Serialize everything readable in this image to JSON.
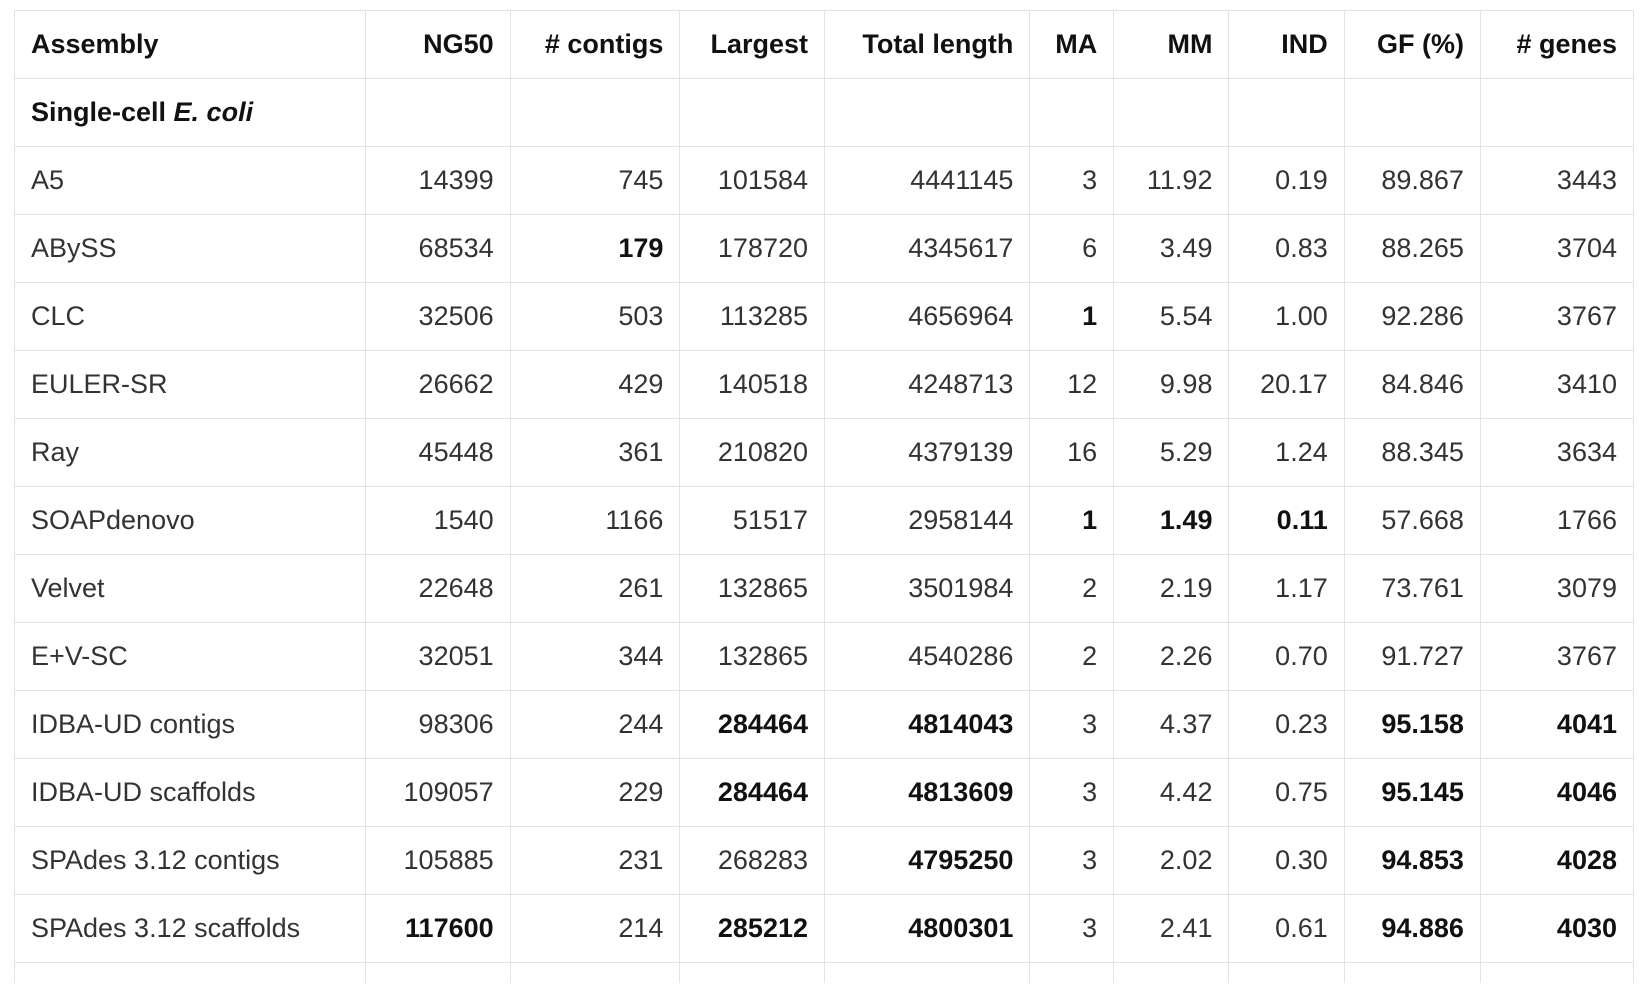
{
  "table": {
    "columns": [
      "Assembly",
      "NG50",
      "# contigs",
      "Largest",
      "Total length",
      "MA",
      "MM",
      "IND",
      "GF (%)",
      "# genes"
    ],
    "section": {
      "prefix": "Single-cell ",
      "organism": "E. coli"
    },
    "rows": [
      {
        "cells": [
          "A5",
          "14399",
          "745",
          "101584",
          "4441145",
          "3",
          "11.92",
          "0.19",
          "89.867",
          "3443"
        ],
        "bold": []
      },
      {
        "cells": [
          "ABySS",
          "68534",
          "179",
          "178720",
          "4345617",
          "6",
          "3.49",
          "0.83",
          "88.265",
          "3704"
        ],
        "bold": [
          2
        ]
      },
      {
        "cells": [
          "CLC",
          "32506",
          "503",
          "113285",
          "4656964",
          "1",
          "5.54",
          "1.00",
          "92.286",
          "3767"
        ],
        "bold": [
          5
        ]
      },
      {
        "cells": [
          "EULER-SR",
          "26662",
          "429",
          "140518",
          "4248713",
          "12",
          "9.98",
          "20.17",
          "84.846",
          "3410"
        ],
        "bold": []
      },
      {
        "cells": [
          "Ray",
          "45448",
          "361",
          "210820",
          "4379139",
          "16",
          "5.29",
          "1.24",
          "88.345",
          "3634"
        ],
        "bold": []
      },
      {
        "cells": [
          "SOAPdenovo",
          "1540",
          "1166",
          "51517",
          "2958144",
          "1",
          "1.49",
          "0.11",
          "57.668",
          "1766"
        ],
        "bold": [
          5,
          6,
          7
        ]
      },
      {
        "cells": [
          "Velvet",
          "22648",
          "261",
          "132865",
          "3501984",
          "2",
          "2.19",
          "1.17",
          "73.761",
          "3079"
        ],
        "bold": []
      },
      {
        "cells": [
          "E+V-SC",
          "32051",
          "344",
          "132865",
          "4540286",
          "2",
          "2.26",
          "0.70",
          "91.727",
          "3767"
        ],
        "bold": []
      },
      {
        "cells": [
          "IDBA-UD contigs",
          "98306",
          "244",
          "284464",
          "4814043",
          "3",
          "4.37",
          "0.23",
          "95.158",
          "4041"
        ],
        "bold": [
          3,
          4,
          8,
          9
        ]
      },
      {
        "cells": [
          "IDBA-UD scaffolds",
          "109057",
          "229",
          "284464",
          "4813609",
          "3",
          "4.42",
          "0.75",
          "95.145",
          "4046"
        ],
        "bold": [
          3,
          4,
          8,
          9
        ]
      },
      {
        "cells": [
          "SPAdes 3.12 contigs",
          "105885",
          "231",
          "268283",
          "4795250",
          "3",
          "2.02",
          "0.30",
          "94.853",
          "4028"
        ],
        "bold": [
          4,
          8,
          9
        ]
      },
      {
        "cells": [
          "SPAdes 3.12 scaffolds",
          "117600",
          "214",
          "285212",
          "4800301",
          "3",
          "2.41",
          "0.61",
          "94.886",
          "4030"
        ],
        "bold": [
          1,
          3,
          4,
          8,
          9
        ]
      }
    ]
  }
}
